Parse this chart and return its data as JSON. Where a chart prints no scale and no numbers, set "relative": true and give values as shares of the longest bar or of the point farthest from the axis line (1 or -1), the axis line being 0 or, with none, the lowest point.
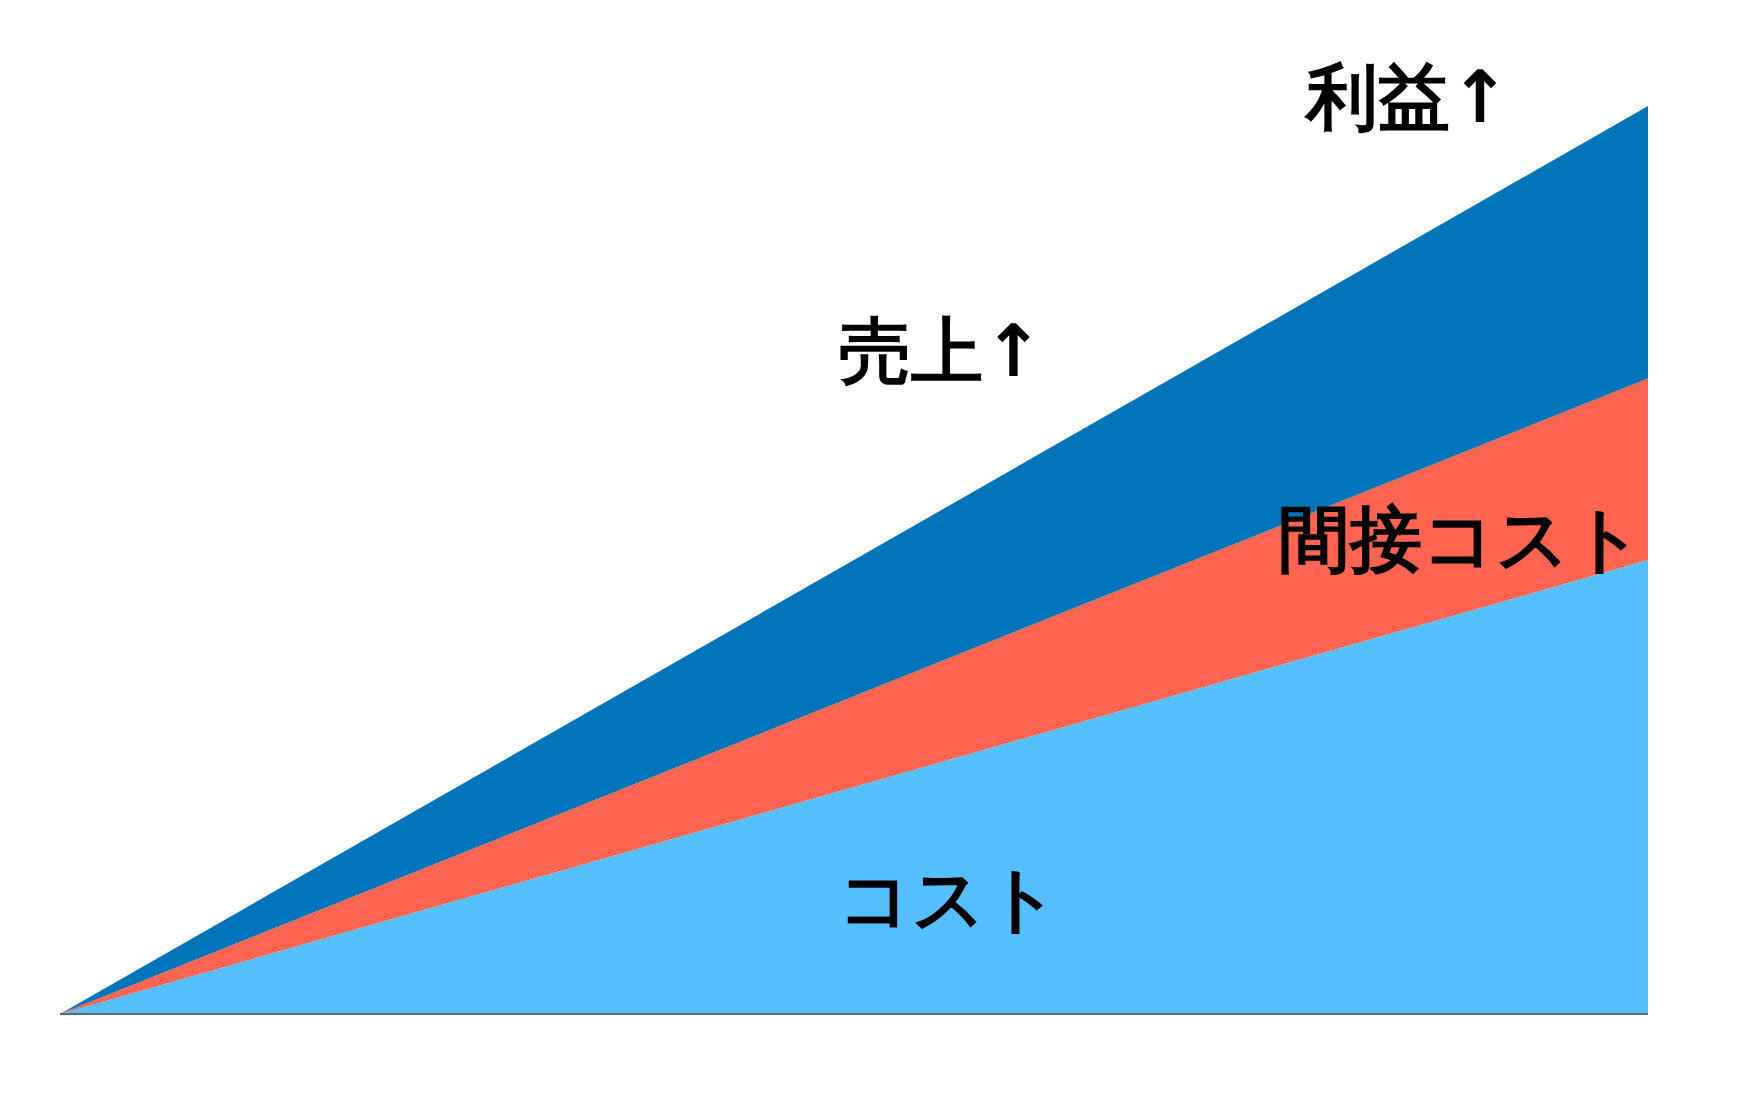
{
  "chart_data": {
    "type": "area",
    "stacked": true,
    "relative": true,
    "categories": [
      null,
      null
    ],
    "series": [
      {
        "name": "コスト",
        "color": "#55bfff",
        "values": [
          0,
          0.5
        ]
      },
      {
        "name": "間接コスト",
        "color": "#ff6450",
        "values": [
          0,
          0.2
        ]
      },
      {
        "name": "利益↑",
        "color": "#0074b8",
        "values": [
          0,
          0.3
        ]
      }
    ],
    "annotations": [
      "売上↑"
    ]
  }
}
